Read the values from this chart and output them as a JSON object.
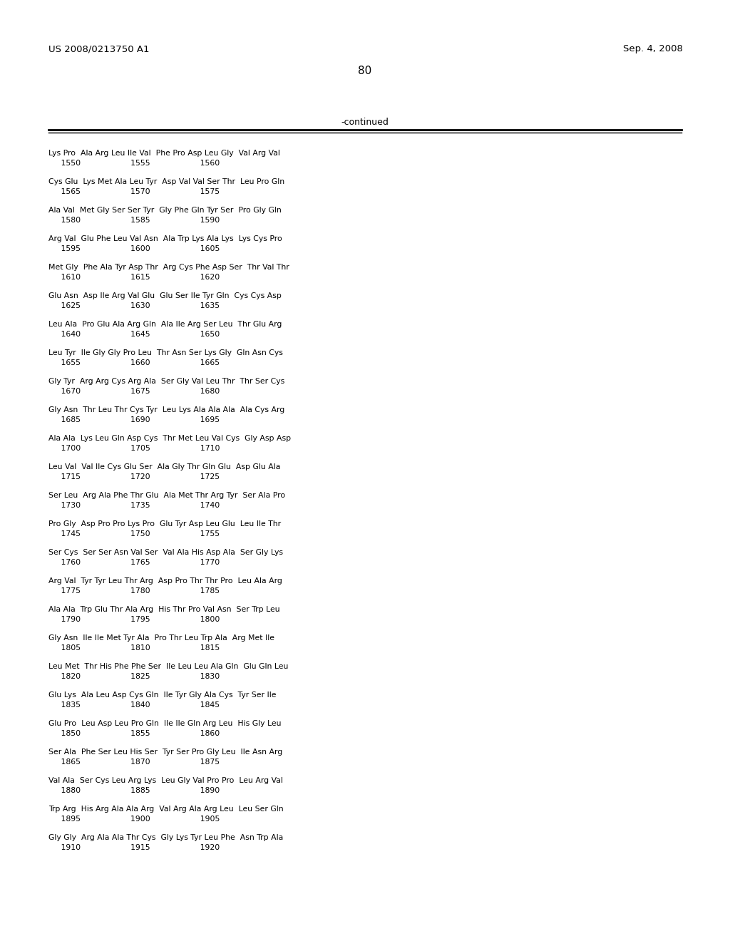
{
  "header_left": "US 2008/0213750 A1",
  "header_right": "Sep. 4, 2008",
  "page_number": "80",
  "continued_label": "-continued",
  "background_color": "#ffffff",
  "text_color": "#000000",
  "rows": [
    {
      "seq": "Lys Pro  Ala Arg Leu Ile Val  Phe Pro Asp Leu Gly  Val Arg Val",
      "nums": "     1550                    1555                    1560"
    },
    {
      "seq": "Cys Glu  Lys Met Ala Leu Tyr  Asp Val Val Ser Thr  Leu Pro Gln",
      "nums": "     1565                    1570                    1575"
    },
    {
      "seq": "Ala Val  Met Gly Ser Ser Tyr  Gly Phe Gln Tyr Ser  Pro Gly Gln",
      "nums": "     1580                    1585                    1590"
    },
    {
      "seq": "Arg Val  Glu Phe Leu Val Asn  Ala Trp Lys Ala Lys  Lys Cys Pro",
      "nums": "     1595                    1600                    1605"
    },
    {
      "seq": "Met Gly  Phe Ala Tyr Asp Thr  Arg Cys Phe Asp Ser  Thr Val Thr",
      "nums": "     1610                    1615                    1620"
    },
    {
      "seq": "Glu Asn  Asp Ile Arg Val Glu  Glu Ser Ile Tyr Gln  Cys Cys Asp",
      "nums": "     1625                    1630                    1635"
    },
    {
      "seq": "Leu Ala  Pro Glu Ala Arg Gln  Ala Ile Arg Ser Leu  Thr Glu Arg",
      "nums": "     1640                    1645                    1650"
    },
    {
      "seq": "Leu Tyr  Ile Gly Gly Pro Leu  Thr Asn Ser Lys Gly  Gln Asn Cys",
      "nums": "     1655                    1660                    1665"
    },
    {
      "seq": "Gly Tyr  Arg Arg Cys Arg Ala  Ser Gly Val Leu Thr  Thr Ser Cys",
      "nums": "     1670                    1675                    1680"
    },
    {
      "seq": "Gly Asn  Thr Leu Thr Cys Tyr  Leu Lys Ala Ala Ala  Ala Cys Arg",
      "nums": "     1685                    1690                    1695"
    },
    {
      "seq": "Ala Ala  Lys Leu Gln Asp Cys  Thr Met Leu Val Cys  Gly Asp Asp",
      "nums": "     1700                    1705                    1710"
    },
    {
      "seq": "Leu Val  Val Ile Cys Glu Ser  Ala Gly Thr Gln Glu  Asp Glu Ala",
      "nums": "     1715                    1720                    1725"
    },
    {
      "seq": "Ser Leu  Arg Ala Phe Thr Glu  Ala Met Thr Arg Tyr  Ser Ala Pro",
      "nums": "     1730                    1735                    1740"
    },
    {
      "seq": "Pro Gly  Asp Pro Pro Lys Pro  Glu Tyr Asp Leu Glu  Leu Ile Thr",
      "nums": "     1745                    1750                    1755"
    },
    {
      "seq": "Ser Cys  Ser Ser Asn Val Ser  Val Ala His Asp Ala  Ser Gly Lys",
      "nums": "     1760                    1765                    1770"
    },
    {
      "seq": "Arg Val  Tyr Tyr Leu Thr Arg  Asp Pro Thr Thr Pro  Leu Ala Arg",
      "nums": "     1775                    1780                    1785"
    },
    {
      "seq": "Ala Ala  Trp Glu Thr Ala Arg  His Thr Pro Val Asn  Ser Trp Leu",
      "nums": "     1790                    1795                    1800"
    },
    {
      "seq": "Gly Asn  Ile Ile Met Tyr Ala  Pro Thr Leu Trp Ala  Arg Met Ile",
      "nums": "     1805                    1810                    1815"
    },
    {
      "seq": "Leu Met  Thr His Phe Phe Ser  Ile Leu Leu Ala Gln  Glu Gln Leu",
      "nums": "     1820                    1825                    1830"
    },
    {
      "seq": "Glu Lys  Ala Leu Asp Cys Gln  Ile Tyr Gly Ala Cys  Tyr Ser Ile",
      "nums": "     1835                    1840                    1845"
    },
    {
      "seq": "Glu Pro  Leu Asp Leu Pro Gln  Ile Ile Gln Arg Leu  His Gly Leu",
      "nums": "     1850                    1855                    1860"
    },
    {
      "seq": "Ser Ala  Phe Ser Leu His Ser  Tyr Ser Pro Gly Leu  Ile Asn Arg",
      "nums": "     1865                    1870                    1875"
    },
    {
      "seq": "Val Ala  Ser Cys Leu Arg Lys  Leu Gly Val Pro Pro  Leu Arg Val",
      "nums": "     1880                    1885                    1890"
    },
    {
      "seq": "Trp Arg  His Arg Ala Ala Arg  Val Arg Ala Arg Leu  Leu Ser Gln",
      "nums": "     1895                    1900                    1905"
    },
    {
      "seq": "Gly Gly  Arg Ala Ala Thr Cys  Gly Lys Tyr Leu Phe  Asn Trp Ala",
      "nums": "     1910                    1915                    1920"
    }
  ]
}
